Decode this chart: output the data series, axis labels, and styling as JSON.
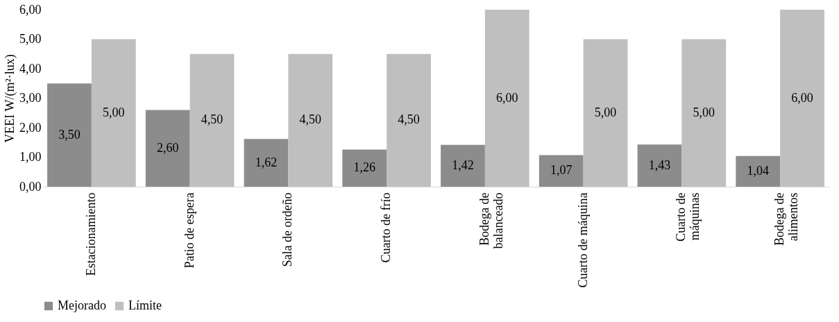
{
  "chart_data": {
    "type": "bar",
    "ylabel": "VEEI W/(m²·lux)",
    "categories": [
      "Estacionamiento",
      "Patio de espera",
      "Sala de ordeño",
      "Cuarto de frío",
      "Bodega de balanceado",
      "Cuarto de máquina",
      "Cuarto de máquinas",
      "Bodega de alimentos"
    ],
    "series": [
      {
        "name": "Mejorado",
        "color": "#8c8c8c",
        "values": [
          3.5,
          2.6,
          1.62,
          1.26,
          1.42,
          1.07,
          1.43,
          1.04
        ],
        "value_labels": [
          "3,50",
          "2,60",
          "1,62",
          "1,26",
          "1,42",
          "1,07",
          "1,43",
          "1,04"
        ]
      },
      {
        "name": "Límite",
        "color": "#bfbfbf",
        "values": [
          5.0,
          4.5,
          4.5,
          4.5,
          6.0,
          5.0,
          5.0,
          6.0
        ],
        "value_labels": [
          "5,00",
          "4,50",
          "4,50",
          "4,50",
          "6,00",
          "5,00",
          "5,00",
          "6,00"
        ]
      }
    ],
    "ylim": [
      0,
      6
    ],
    "yticks": [
      {
        "value": 0,
        "label": "0,00"
      },
      {
        "value": 1,
        "label": "1,00"
      },
      {
        "value": 2,
        "label": "2,00"
      },
      {
        "value": 3,
        "label": "3,00"
      },
      {
        "value": 4,
        "label": "4,00"
      },
      {
        "value": 5,
        "label": "5,00"
      },
      {
        "value": 6,
        "label": "6,00"
      }
    ],
    "grid": false,
    "legend": "bottom"
  }
}
